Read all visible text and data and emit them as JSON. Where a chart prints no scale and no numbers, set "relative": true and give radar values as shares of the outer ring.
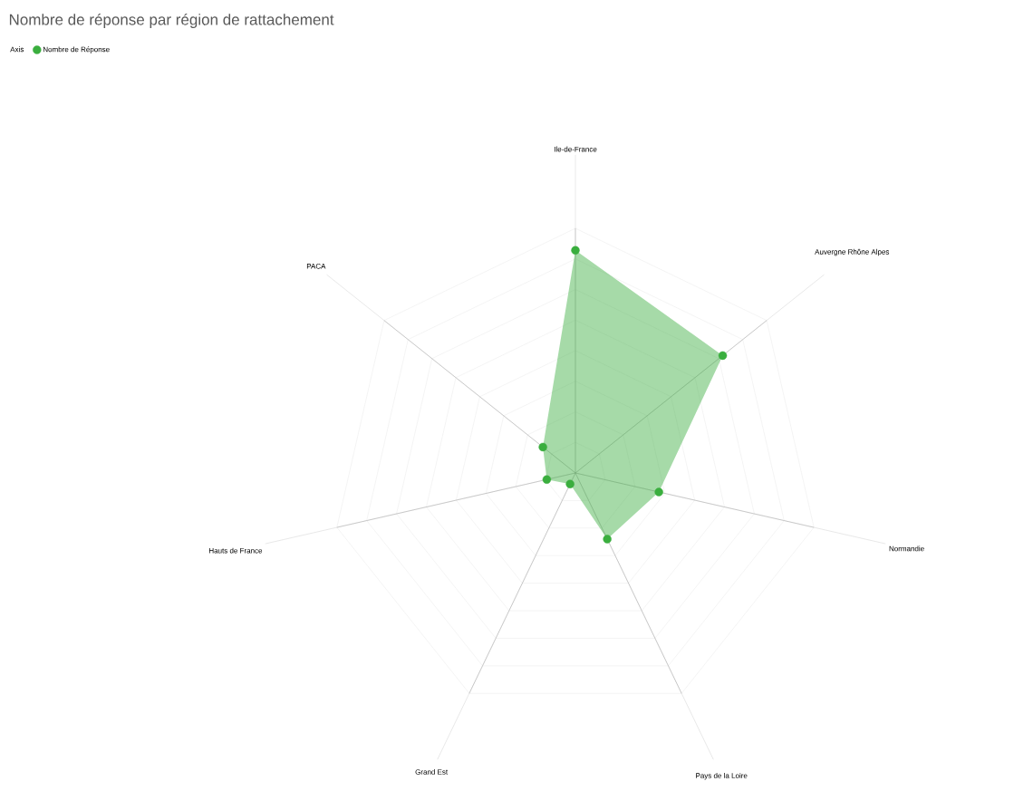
{
  "chart_data": {
    "type": "radar",
    "title": "Nombre de réponse par région de rattachement",
    "legend_title": "Axis",
    "categories": [
      "Ile-de-France",
      "Auvergne Rhône Alpes",
      "Normandie",
      "Pays de la Loire",
      "Grand Est",
      "Hauts de France",
      "PACA"
    ],
    "relative": true,
    "grid": true,
    "legend": "top left",
    "marker": "circle",
    "series": [
      {
        "name": "Nombre de Réponse",
        "color": "#3aae3e",
        "values": [
          0.91,
          0.77,
          0.35,
          0.3,
          0.05,
          0.12,
          0.17
        ]
      }
    ]
  }
}
